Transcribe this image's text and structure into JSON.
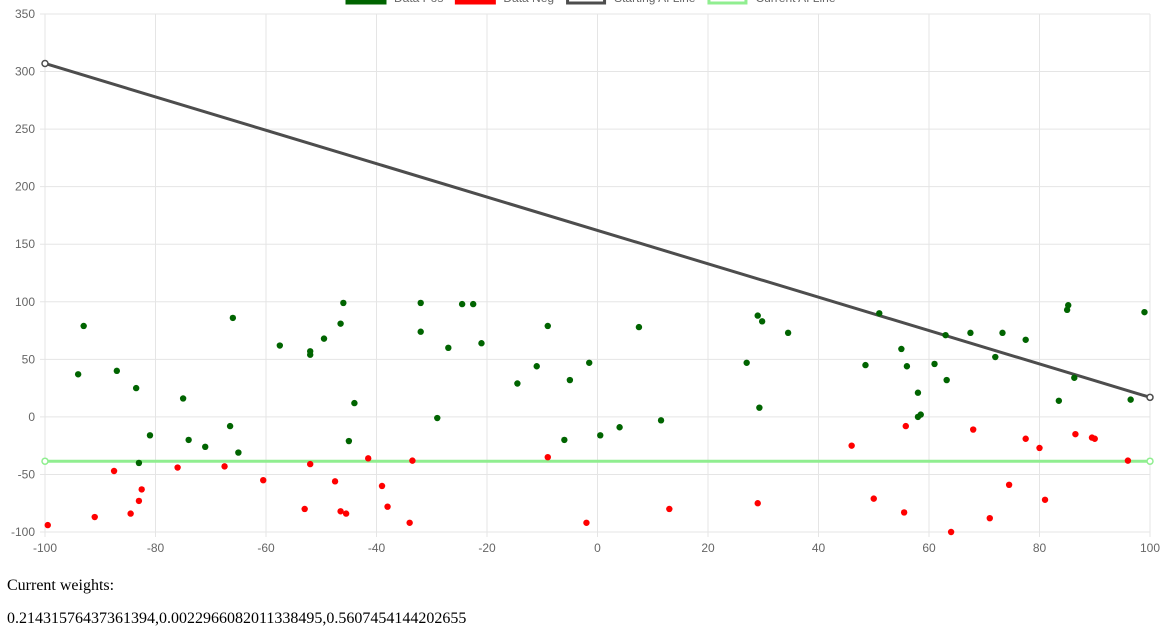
{
  "chart_data": {
    "type": "scatter",
    "xlim": [
      -100,
      100
    ],
    "ylim": [
      -100,
      350
    ],
    "x_ticks": [
      "-100",
      "-80",
      "-60",
      "-40",
      "-20",
      "0",
      "20",
      "40",
      "60",
      "80",
      "100"
    ],
    "y_ticks": [
      "-100",
      "-50",
      "0",
      "50",
      "100",
      "150",
      "200",
      "250",
      "300",
      "350"
    ],
    "grid": true,
    "legend_position": "top",
    "legend": [
      {
        "label": "Data Pos",
        "color": "#006400",
        "kind": "box"
      },
      {
        "label": "Data Neg",
        "color": "#ff0000",
        "kind": "box"
      },
      {
        "label": "Starting AI Line",
        "color": "#4d4d4d",
        "kind": "line"
      },
      {
        "label": "Current AI Line",
        "color": "#90ee90",
        "kind": "line"
      }
    ],
    "series": [
      {
        "name": "Data Pos",
        "color": "#006400",
        "points": [
          [
            -94,
            37
          ],
          [
            -93,
            79
          ],
          [
            -87,
            40
          ],
          [
            -83.5,
            25
          ],
          [
            -83,
            -40
          ],
          [
            -81,
            -16
          ],
          [
            -75,
            16
          ],
          [
            -74,
            -20
          ],
          [
            -71,
            -26
          ],
          [
            -66.5,
            -8
          ],
          [
            -66,
            86
          ],
          [
            -65,
            -31
          ],
          [
            -57.5,
            62
          ],
          [
            -52,
            57
          ],
          [
            -52,
            54
          ],
          [
            -49.5,
            68
          ],
          [
            -46.5,
            81
          ],
          [
            -46,
            99
          ],
          [
            -45,
            -21
          ],
          [
            -44,
            12
          ],
          [
            -32,
            99
          ],
          [
            -32,
            74
          ],
          [
            -29,
            -1
          ],
          [
            -27,
            60
          ],
          [
            -24.5,
            98
          ],
          [
            -22.5,
            98
          ],
          [
            -21,
            64
          ],
          [
            -14.5,
            29
          ],
          [
            -11,
            44
          ],
          [
            -9,
            79
          ],
          [
            -6,
            -20
          ],
          [
            -5,
            32
          ],
          [
            -1.5,
            47
          ],
          [
            0.5,
            -16
          ],
          [
            4,
            -9
          ],
          [
            7.5,
            78
          ],
          [
            11.5,
            -3
          ],
          [
            27,
            47
          ],
          [
            29,
            88
          ],
          [
            29.3,
            8
          ],
          [
            29.8,
            83
          ],
          [
            34.5,
            73
          ],
          [
            48.5,
            45
          ],
          [
            51,
            90
          ],
          [
            55,
            59
          ],
          [
            56,
            44
          ],
          [
            58,
            21
          ],
          [
            58,
            0
          ],
          [
            58.5,
            2
          ],
          [
            61,
            46
          ],
          [
            63,
            71
          ],
          [
            63.2,
            32
          ],
          [
            67.5,
            73
          ],
          [
            72,
            52
          ],
          [
            73.3,
            73
          ],
          [
            77.5,
            67
          ],
          [
            83.5,
            14
          ],
          [
            85,
            93
          ],
          [
            85.2,
            97
          ],
          [
            86.3,
            34
          ],
          [
            96.5,
            15
          ],
          [
            99,
            91
          ]
        ]
      },
      {
        "name": "Data Neg",
        "color": "#ff0000",
        "points": [
          [
            -99.5,
            -94
          ],
          [
            -91,
            -87
          ],
          [
            -87.5,
            -47
          ],
          [
            -84.5,
            -84
          ],
          [
            -83,
            -73
          ],
          [
            -82.5,
            -63
          ],
          [
            -76,
            -44
          ],
          [
            -67.5,
            -43
          ],
          [
            -60.5,
            -55
          ],
          [
            -53,
            -80
          ],
          [
            -52,
            -41
          ],
          [
            -47.5,
            -56
          ],
          [
            -46.5,
            -82
          ],
          [
            -45.5,
            -84
          ],
          [
            -41.5,
            -36
          ],
          [
            -39,
            -60
          ],
          [
            -38,
            -78
          ],
          [
            -34,
            -92
          ],
          [
            -33.5,
            -38
          ],
          [
            -9,
            -35
          ],
          [
            -2,
            -92
          ],
          [
            13,
            -80
          ],
          [
            29,
            -75
          ],
          [
            46,
            -25
          ],
          [
            50,
            -71
          ],
          [
            55.5,
            -83
          ],
          [
            55.8,
            -8
          ],
          [
            64,
            -100
          ],
          [
            68,
            -11
          ],
          [
            71,
            -88
          ],
          [
            74.5,
            -59
          ],
          [
            77.5,
            -19
          ],
          [
            80,
            -27
          ],
          [
            81,
            -72
          ],
          [
            86.5,
            -15
          ],
          [
            89.5,
            -18
          ],
          [
            90,
            -19
          ],
          [
            96,
            -38
          ]
        ]
      }
    ],
    "lines": [
      {
        "name": "Starting AI Line",
        "color": "#4d4d4d",
        "points": [
          [
            -100,
            307
          ],
          [
            100,
            17
          ]
        ]
      },
      {
        "name": "Current AI Line",
        "color": "#90ee90",
        "points": [
          [
            -100,
            -38.5
          ],
          [
            100,
            -38.5
          ]
        ]
      }
    ]
  },
  "weights": {
    "label": "Current weights:",
    "value": "0.21431576437361394,0.0022966082011338495,0.5607454144202655"
  }
}
